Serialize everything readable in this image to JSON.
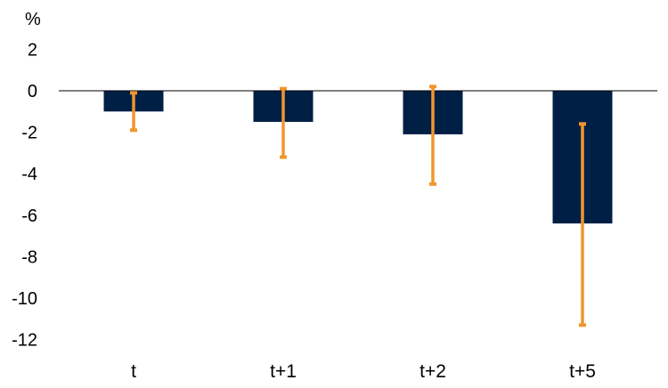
{
  "chart_data": {
    "type": "bar",
    "unit_label": "%",
    "categories": [
      "t",
      "t+1",
      "t+2",
      "t+5"
    ],
    "values": [
      -1.0,
      -1.5,
      -2.1,
      -6.4
    ],
    "error_low": [
      -1.9,
      -3.2,
      -4.5,
      -11.3
    ],
    "error_high": [
      -0.1,
      0.1,
      0.2,
      -1.6
    ],
    "ylim": [
      -12,
      2
    ],
    "yticks": [
      2,
      0,
      -2,
      -4,
      -6,
      -8,
      -10,
      -12
    ],
    "grid": false,
    "colors": {
      "bar": "#001f45",
      "error_bar": "#f0962e",
      "axis_line": "#000000"
    }
  }
}
